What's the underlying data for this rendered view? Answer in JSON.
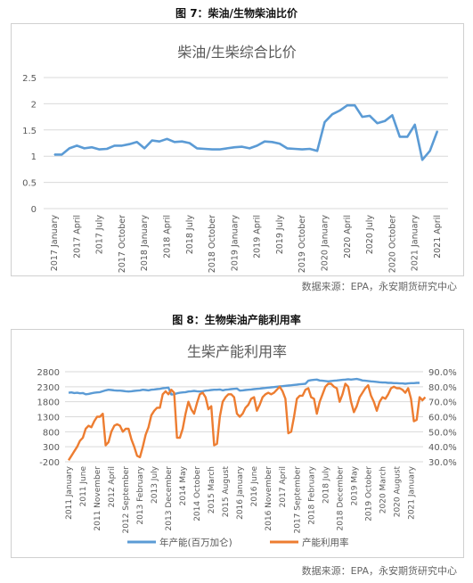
{
  "figure1": {
    "caption": "图 7：柴油/生物柴油比价",
    "source": "数据来源：EPA，永安期货研究中心"
  },
  "figure2": {
    "caption": "图 8：生物柴油产能利用率",
    "source": "数据来源：EPA，永安期货研究中心"
  },
  "colors": {
    "blue": "#5b9bd5",
    "orange": "#ed7d31",
    "grid": "#d9d9d9",
    "axis_text": "#595959"
  },
  "chart_data": [
    {
      "type": "line",
      "title": "柴油/生柴综合比价",
      "ylim": [
        0,
        2.5
      ],
      "y_ticks": [
        "0",
        "0.5",
        "1",
        "1.5",
        "2",
        "2.5"
      ],
      "x_ticks": [
        "2017 January",
        "2017 April",
        "2017 July",
        "2017 October",
        "2018 January",
        "2018 April",
        "2018 July",
        "2018 October",
        "2019 January",
        "2019 April",
        "2019 July",
        "2019 October",
        "2020 January",
        "2020 April",
        "2020 July",
        "2020 October",
        "2021 January",
        "2021 April"
      ],
      "grid": true,
      "series": [
        {
          "values": [
            1.03,
            1.03,
            1.15,
            1.2,
            1.15,
            1.17,
            1.13,
            1.14,
            1.2,
            1.2,
            1.23,
            1.27,
            1.15,
            1.3,
            1.28,
            1.33,
            1.27,
            1.28,
            1.25,
            1.15,
            1.14,
            1.13,
            1.13,
            1.15,
            1.17,
            1.18,
            1.15,
            1.2,
            1.28,
            1.27,
            1.24,
            1.15,
            1.14,
            1.13,
            1.14,
            1.1,
            1.65,
            1.8,
            1.87,
            1.97,
            1.97,
            1.75,
            1.77,
            1.63,
            1.67,
            1.78,
            1.37,
            1.37,
            1.6,
            0.93,
            1.1,
            1.48
          ]
        }
      ]
    },
    {
      "type": "line",
      "title": "生柴产能利用率",
      "ylim": [
        -200,
        2800
      ],
      "y2lim": [
        30,
        90
      ],
      "y_ticks": [
        "-200",
        "300",
        "800",
        "1300",
        "1800",
        "2300",
        "2800"
      ],
      "y2_ticks": [
        "30.0%",
        "40.0%",
        "50.0%",
        "60.0%",
        "70.0%",
        "80.0%",
        "90.0%"
      ],
      "x_ticks": [
        "2011 January",
        "2011 June",
        "2011 November",
        "2012 April",
        "2012 September",
        "2013 February",
        "2013 July",
        "2013 December",
        "2014 May",
        "2014 October",
        "2015 March",
        "2015 August",
        "2016 January",
        "2016 June",
        "2016 November",
        "2017 April",
        "2017 September",
        "2018 February",
        "2018 July",
        "2018 December",
        "2019 May",
        "2019 October",
        "2020 March",
        "2020 August",
        "2021 January"
      ],
      "legend_position": "bottom",
      "grid": true,
      "series": [
        {
          "name": "年产能(百万加仑)",
          "axis": "left",
          "values": [
            2100,
            2110,
            2090,
            2100,
            2080,
            2090,
            2050,
            2060,
            2080,
            2100,
            2110,
            2120,
            2150,
            2180,
            2200,
            2190,
            2180,
            2170,
            2170,
            2160,
            2150,
            2140,
            2150,
            2160,
            2170,
            2180,
            2200,
            2190,
            2180,
            2200,
            2210,
            2220,
            2230,
            2250,
            2260,
            2270,
            2040,
            2050,
            2080,
            2100,
            2110,
            2120,
            2140,
            2150,
            2160,
            2150,
            2140,
            2150,
            2170,
            2180,
            2190,
            2200,
            2200,
            2210,
            2180,
            2200,
            2210,
            2220,
            2230,
            2240,
            2170,
            2180,
            2190,
            2200,
            2210,
            2220,
            2230,
            2240,
            2250,
            2260,
            2270,
            2280,
            2290,
            2300,
            2310,
            2320,
            2330,
            2340,
            2350,
            2360,
            2370,
            2380,
            2390,
            2400,
            2500,
            2520,
            2530,
            2540,
            2510,
            2500,
            2490,
            2480,
            2490,
            2500,
            2510,
            2520,
            2530,
            2540,
            2550,
            2540,
            2550,
            2560,
            2540,
            2510,
            2500,
            2490,
            2480,
            2470,
            2460,
            2450,
            2440,
            2440,
            2430,
            2430,
            2420,
            2420,
            2410,
            2410,
            2400,
            2410,
            2420,
            2420,
            2430,
            2430
          ]
        },
        {
          "name": "产能利用率",
          "axis": "right",
          "values": [
            31,
            34,
            37,
            40,
            44,
            46,
            52,
            54,
            53,
            57,
            60,
            60,
            62,
            41,
            43,
            50,
            54,
            55,
            54,
            50,
            52,
            52,
            45,
            40,
            34,
            33,
            40,
            48,
            53,
            61,
            64,
            66,
            66,
            75,
            77,
            75,
            78,
            76,
            46,
            46,
            52,
            62,
            70,
            65,
            62,
            69,
            75,
            76,
            73,
            65,
            67,
            41,
            42,
            60,
            70,
            73,
            75,
            75,
            73,
            62,
            60,
            62,
            66,
            68,
            72,
            73,
            64,
            68,
            73,
            75,
            76,
            75,
            76,
            78,
            80,
            77,
            72,
            49,
            50,
            60,
            72,
            74,
            74,
            78,
            79,
            73,
            72,
            62,
            70,
            75,
            80,
            82,
            82,
            80,
            79,
            70,
            75,
            82,
            80,
            70,
            63,
            67,
            73,
            76,
            79,
            81,
            74,
            70,
            64,
            70,
            73,
            72,
            75,
            79,
            80,
            79,
            79,
            78,
            76,
            79,
            72,
            57,
            58,
            73,
            71,
            73
          ]
        }
      ]
    }
  ]
}
